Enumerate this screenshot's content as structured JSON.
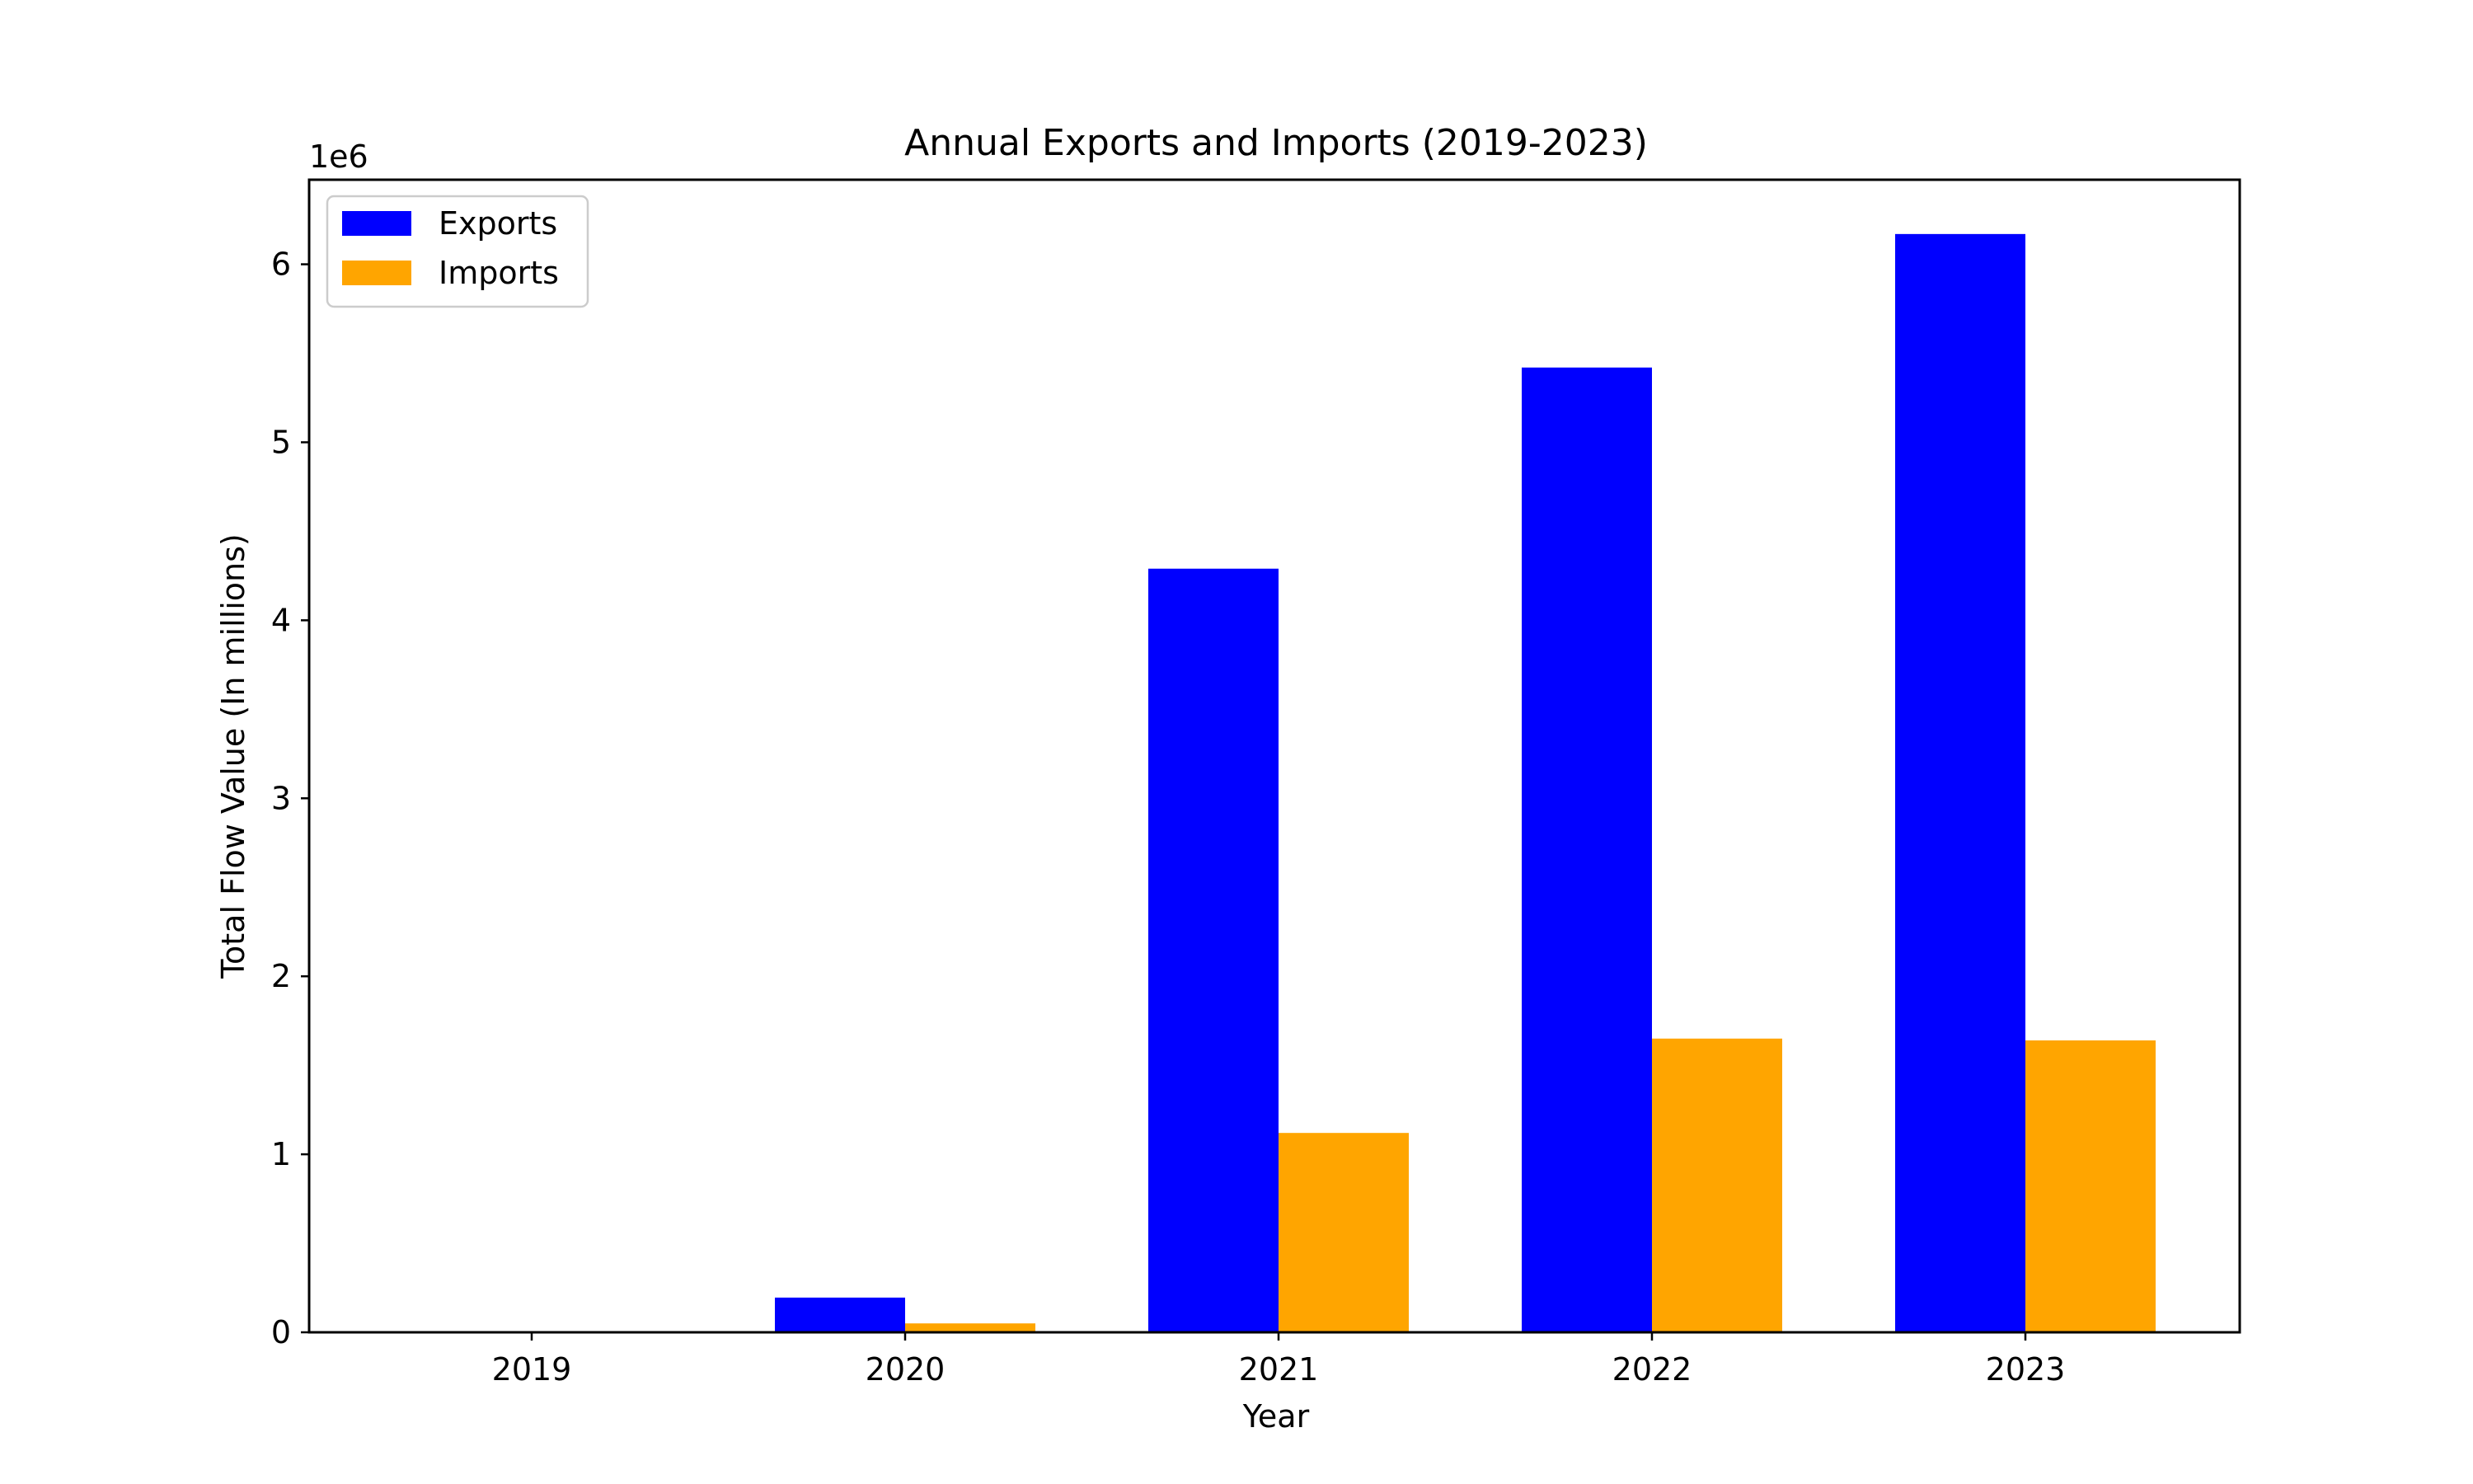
{
  "chart_data": {
    "type": "bar",
    "title": "Annual Exports and Imports (2019-2023)",
    "xlabel": "Year",
    "ylabel": "Total Flow Value (In millions)",
    "y_scale_label": "1e6",
    "categories": [
      "2019",
      "2020",
      "2021",
      "2022",
      "2023"
    ],
    "series": [
      {
        "name": "Exports",
        "color": "#0000ff",
        "values": [
          0,
          195000,
          4290000,
          5420000,
          6170000
        ]
      },
      {
        "name": "Imports",
        "color": "#ffa500",
        "values": [
          0,
          50000,
          1120000,
          1650000,
          1640000
        ]
      }
    ],
    "y_ticks": [
      0,
      1000000,
      2000000,
      3000000,
      4000000,
      5000000,
      6000000
    ],
    "y_tick_labels": [
      "0",
      "1",
      "2",
      "3",
      "4",
      "5",
      "6"
    ],
    "ylim": [
      0,
      6475000
    ],
    "grid": false,
    "legend": "top-left"
  }
}
